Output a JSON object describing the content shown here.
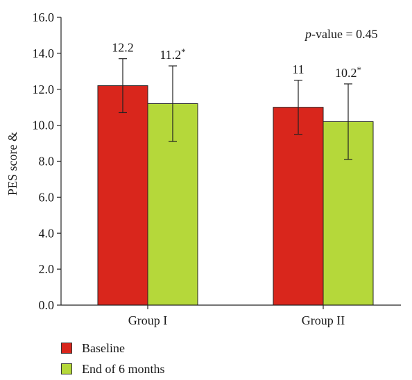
{
  "chart_data": {
    "type": "bar",
    "categories": [
      "Group I",
      "Group II"
    ],
    "series": [
      {
        "name": "Baseline",
        "color": "#d9261c",
        "values": [
          12.2,
          11
        ],
        "errors": [
          1.5,
          1.5
        ],
        "labels": [
          "12.2",
          "11"
        ]
      },
      {
        "name": "End of 6 months",
        "color": "#b5d83a",
        "values": [
          11.2,
          10.2
        ],
        "errors": [
          2.1,
          2.1
        ],
        "labels": [
          "11.2*",
          "10.2*"
        ]
      }
    ],
    "ylabel": "PES score &",
    "ylim": [
      0,
      16
    ],
    "yticks": [
      "0.0",
      "2.0",
      "4.0",
      "6.0",
      "8.0",
      "10.0",
      "12.0",
      "14.0",
      "16.0"
    ],
    "annotation": {
      "italic": "p",
      "text": "-value = 0.45"
    },
    "legend_position": "bottom-left",
    "grid": false
  }
}
